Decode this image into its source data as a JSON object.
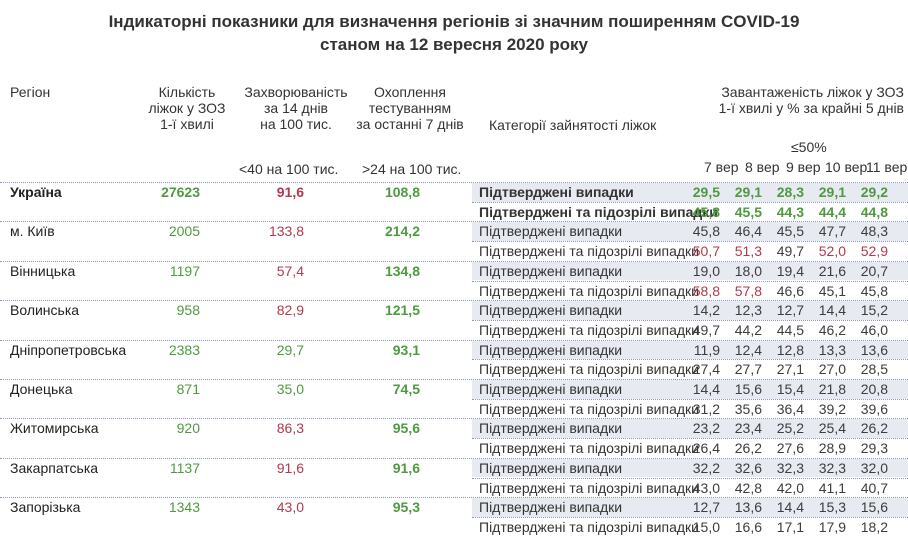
{
  "title": {
    "line1": "Індикаторні показники для визначення регіонів зі значним поширенням COVID-19",
    "line2": "станом на 12 вересня 2020 року"
  },
  "headers": {
    "region": "Регіон",
    "beds": [
      "Кількість",
      "ліжок у ЗОЗ",
      "1-ї хвилі"
    ],
    "incidence": [
      "Захворюваність",
      "за 14 днів",
      "на 100 тис."
    ],
    "testing": [
      "Охоплення",
      "тестуванням",
      "за останні 7 днів"
    ],
    "category": "Категорії зайнятості ліжок",
    "occupancy": [
      "Завантаженість ліжок у ЗОЗ",
      "1-ї хвилі у % за крайні 5 днів"
    ],
    "incidence_threshold": "<40 на 100 тис.",
    "testing_threshold": ">24 на 100 тис.",
    "occupancy_threshold": "≤50%",
    "days": [
      "7 вер",
      "8 вер",
      "9 вер",
      "10 вер",
      "11 вер"
    ]
  },
  "category_labels": {
    "confirmed": "Підтверджені випадки",
    "confirmed_suspected": "Підтверджені та підозрілі випадки"
  },
  "colors": {
    "good": "#4e9a3f",
    "bad": "#b13a4c",
    "band": "#e8eaf2"
  },
  "regions": [
    {
      "name": "Україна",
      "beds": "27623",
      "incidence": "91,6",
      "incidence_status": "bad",
      "testing": "108,8",
      "testing_status": "good",
      "highlight": true,
      "confirmed": [
        "29,5",
        "29,1",
        "28,3",
        "29,1",
        "29,2"
      ],
      "confirmed_status": [
        "good",
        "good",
        "good",
        "good",
        "good"
      ],
      "confirmed_suspected": [
        "45,8",
        "45,5",
        "44,3",
        "44,4",
        "44,8"
      ],
      "confirmed_suspected_status": [
        "good",
        "good",
        "good",
        "good",
        "good"
      ]
    },
    {
      "name": "м. Київ",
      "beds": "2005",
      "incidence": "133,8",
      "incidence_status": "bad",
      "testing": "214,2",
      "testing_status": "good",
      "confirmed": [
        "45,8",
        "46,4",
        "45,5",
        "47,7",
        "48,3"
      ],
      "confirmed_status": [
        "good",
        "good",
        "good",
        "good",
        "good"
      ],
      "confirmed_suspected": [
        "50,7",
        "51,3",
        "49,7",
        "52,0",
        "52,9"
      ],
      "confirmed_suspected_status": [
        "bad",
        "bad",
        "good",
        "bad",
        "bad"
      ]
    },
    {
      "name": "Вінницька",
      "beds": "1197",
      "incidence": "57,4",
      "incidence_status": "bad",
      "testing": "134,8",
      "testing_status": "good",
      "confirmed": [
        "19,0",
        "18,0",
        "19,4",
        "21,6",
        "20,7"
      ],
      "confirmed_status": [
        "good",
        "good",
        "good",
        "good",
        "good"
      ],
      "confirmed_suspected": [
        "58,8",
        "57,8",
        "46,6",
        "45,1",
        "45,8"
      ],
      "confirmed_suspected_status": [
        "bad",
        "bad",
        "good",
        "good",
        "good"
      ]
    },
    {
      "name": "Волинська",
      "beds": "958",
      "incidence": "82,9",
      "incidence_status": "bad",
      "testing": "121,5",
      "testing_status": "good",
      "confirmed": [
        "14,2",
        "12,3",
        "12,7",
        "14,4",
        "15,2"
      ],
      "confirmed_status": [
        "good",
        "good",
        "good",
        "good",
        "good"
      ],
      "confirmed_suspected": [
        "49,7",
        "44,2",
        "44,5",
        "46,2",
        "46,0"
      ],
      "confirmed_suspected_status": [
        "good",
        "good",
        "good",
        "good",
        "good"
      ]
    },
    {
      "name": "Дніпропетровська",
      "beds": "2383",
      "incidence": "29,7",
      "incidence_status": "good",
      "testing": "93,1",
      "testing_status": "good",
      "confirmed": [
        "11,9",
        "12,4",
        "12,8",
        "13,3",
        "13,6"
      ],
      "confirmed_status": [
        "good",
        "good",
        "good",
        "good",
        "good"
      ],
      "confirmed_suspected": [
        "27,4",
        "27,7",
        "27,1",
        "27,0",
        "28,5"
      ],
      "confirmed_suspected_status": [
        "good",
        "good",
        "good",
        "good",
        "good"
      ]
    },
    {
      "name": "Донецька",
      "beds": "871",
      "incidence": "35,0",
      "incidence_status": "good",
      "testing": "74,5",
      "testing_status": "good",
      "confirmed": [
        "14,4",
        "15,6",
        "15,4",
        "21,8",
        "20,8"
      ],
      "confirmed_status": [
        "good",
        "good",
        "good",
        "good",
        "good"
      ],
      "confirmed_suspected": [
        "31,2",
        "35,6",
        "36,4",
        "39,2",
        "39,6"
      ],
      "confirmed_suspected_status": [
        "good",
        "good",
        "good",
        "good",
        "good"
      ]
    },
    {
      "name": "Житомирська",
      "beds": "920",
      "incidence": "86,3",
      "incidence_status": "bad",
      "testing": "95,6",
      "testing_status": "good",
      "confirmed": [
        "23,2",
        "23,4",
        "25,2",
        "25,4",
        "26,2"
      ],
      "confirmed_status": [
        "good",
        "good",
        "good",
        "good",
        "good"
      ],
      "confirmed_suspected": [
        "26,4",
        "26,2",
        "27,6",
        "28,9",
        "29,3"
      ],
      "confirmed_suspected_status": [
        "good",
        "good",
        "good",
        "good",
        "good"
      ]
    },
    {
      "name": "Закарпатська",
      "beds": "1137",
      "incidence": "91,6",
      "incidence_status": "bad",
      "testing": "91,6",
      "testing_status": "good",
      "confirmed": [
        "32,2",
        "32,6",
        "32,3",
        "32,3",
        "32,0"
      ],
      "confirmed_status": [
        "good",
        "good",
        "good",
        "good",
        "good"
      ],
      "confirmed_suspected": [
        "43,0",
        "42,8",
        "42,0",
        "41,1",
        "40,7"
      ],
      "confirmed_suspected_status": [
        "good",
        "good",
        "good",
        "good",
        "good"
      ]
    },
    {
      "name": "Запорізька",
      "beds": "1343",
      "incidence": "43,0",
      "incidence_status": "bad",
      "testing": "95,3",
      "testing_status": "good",
      "confirmed": [
        "12,7",
        "13,6",
        "14,4",
        "15,3",
        "15,6"
      ],
      "confirmed_status": [
        "good",
        "good",
        "good",
        "good",
        "good"
      ],
      "confirmed_suspected": [
        "15,0",
        "16,6",
        "17,1",
        "17,9",
        "18,2"
      ],
      "confirmed_suspected_status": [
        "good",
        "good",
        "good",
        "good",
        "good"
      ]
    }
  ]
}
